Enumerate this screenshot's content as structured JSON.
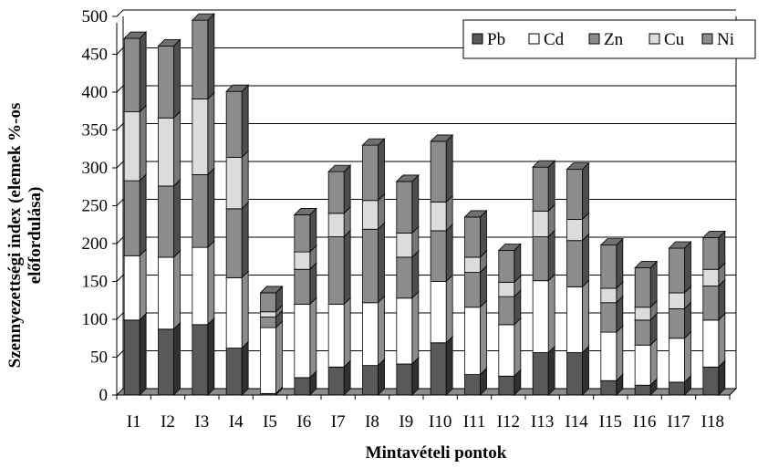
{
  "chart_data": {
    "type": "bar",
    "stacked": true,
    "three_d": true,
    "categories": [
      "I1",
      "I2",
      "I3",
      "I4",
      "I5",
      "I6",
      "I7",
      "I8",
      "I9",
      "I10",
      "I11",
      "I12",
      "I13",
      "I14",
      "I15",
      "I16",
      "I17",
      "I18"
    ],
    "series": [
      {
        "name": "Pb",
        "color": "#595959",
        "values": [
          99,
          87,
          93,
          62,
          2,
          23,
          37,
          39,
          41,
          69,
          27,
          25,
          56,
          56,
          19,
          13,
          17,
          37
        ]
      },
      {
        "name": "Cd",
        "color": "#ffffff",
        "values": [
          85,
          95,
          102,
          93,
          87,
          97,
          83,
          83,
          87,
          81,
          89,
          68,
          95,
          87,
          64,
          53,
          58,
          62
        ]
      },
      {
        "name": "Zn",
        "color": "#8c8c8c",
        "values": [
          99,
          94,
          96,
          91,
          14,
          46,
          89,
          97,
          54,
          67,
          46,
          37,
          58,
          61,
          39,
          33,
          39,
          45
        ]
      },
      {
        "name": "Cu",
        "color": "#dcdcdc",
        "values": [
          91,
          90,
          100,
          68,
          7,
          23,
          31,
          38,
          32,
          38,
          20,
          19,
          34,
          28,
          19,
          17,
          21,
          22
        ]
      },
      {
        "name": "Ni",
        "color": "#8c8c8c",
        "values": [
          97,
          95,
          104,
          87,
          25,
          49,
          55,
          73,
          68,
          80,
          53,
          42,
          58,
          66,
          57,
          52,
          59,
          42
        ]
      }
    ],
    "xlabel": "Mintavételi pontok",
    "ylabel": [
      "Szennyezettségi index (elemek %-os",
      "előfordulása)"
    ],
    "ylim": [
      0,
      500
    ],
    "yticks": [
      "0",
      "50",
      "100",
      "150",
      "200",
      "250",
      "300",
      "350",
      "400",
      "450",
      "500"
    ],
    "grid": true,
    "legend": "top-right"
  }
}
